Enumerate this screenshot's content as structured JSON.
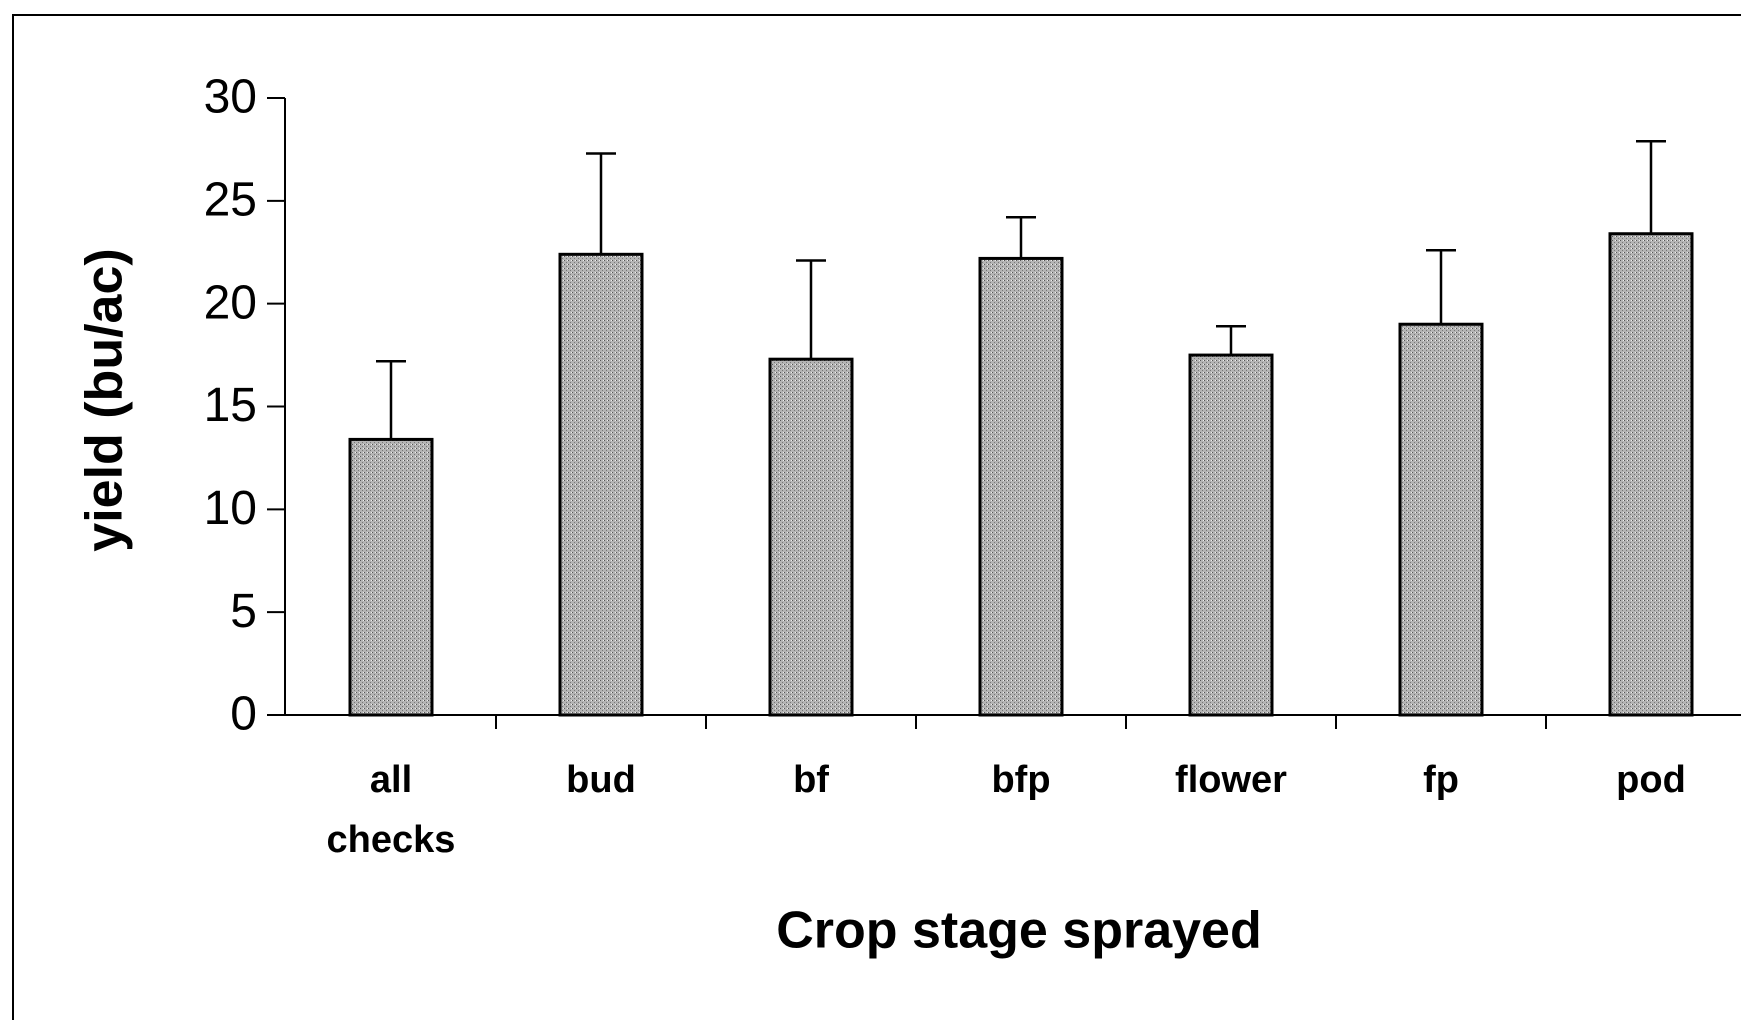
{
  "chart_data": {
    "type": "bar",
    "ylabel": "yield (bu/ac)",
    "xlabel": "Crop stage sprayed",
    "categories": [
      "all checks",
      "bud",
      "bf",
      "bfp",
      "flower",
      "fp",
      "pod"
    ],
    "values": [
      13.4,
      22.4,
      17.3,
      22.2,
      17.5,
      19.0,
      23.4
    ],
    "errors": [
      3.8,
      4.9,
      4.8,
      2.0,
      1.4,
      3.6,
      4.5
    ],
    "color": "#a8a8a8",
    "ylim": [
      0,
      30
    ],
    "yticks": [
      0,
      5,
      10,
      15,
      20,
      25,
      30
    ],
    "grid": false
  }
}
